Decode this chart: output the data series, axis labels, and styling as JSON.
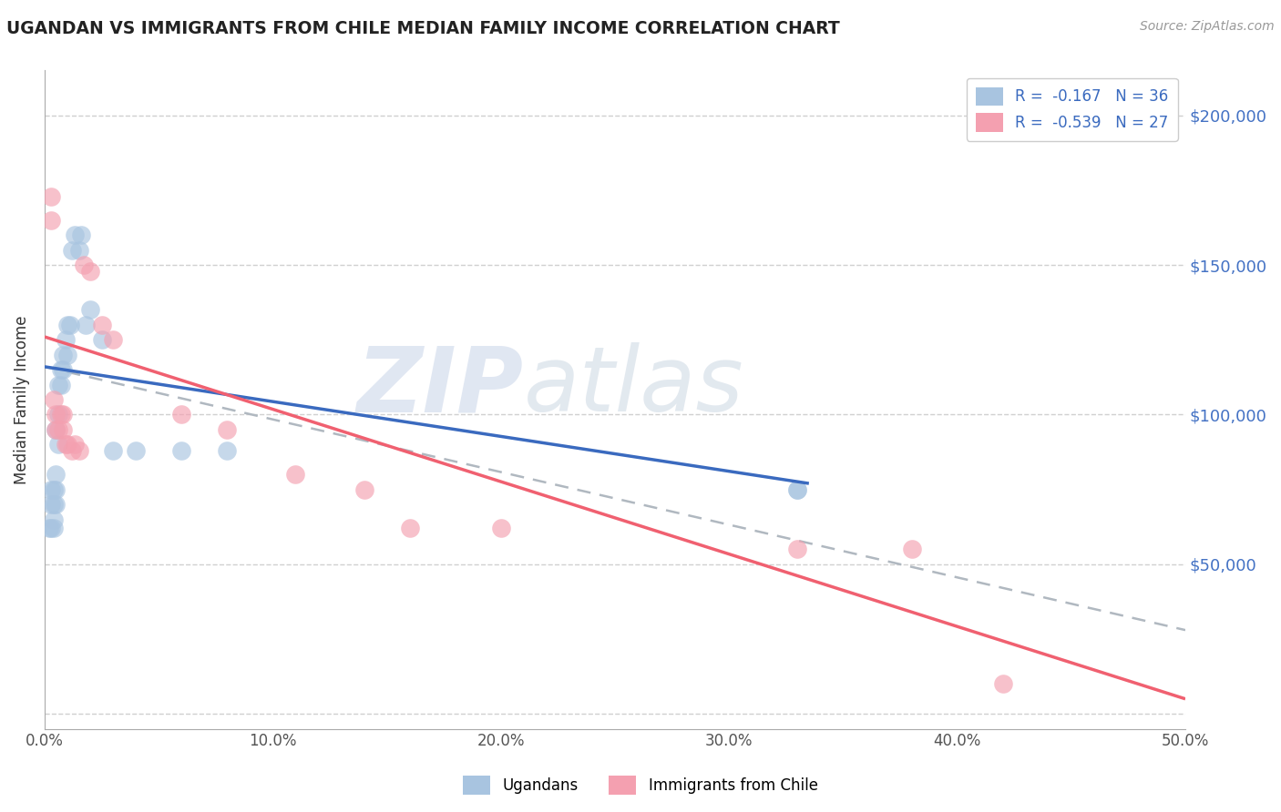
{
  "title": "UGANDAN VS IMMIGRANTS FROM CHILE MEDIAN FAMILY INCOME CORRELATION CHART",
  "source": "Source: ZipAtlas.com",
  "ylabel": "Median Family Income",
  "xlim": [
    0.0,
    0.5
  ],
  "ylim": [
    -5000,
    215000
  ],
  "yticks": [
    0,
    50000,
    100000,
    150000,
    200000
  ],
  "ytick_labels": [
    "",
    "$50,000",
    "$100,000",
    "$150,000",
    "$200,000"
  ],
  "xticks": [
    0.0,
    0.1,
    0.2,
    0.3,
    0.4,
    0.5
  ],
  "xtick_labels": [
    "0.0%",
    "10.0%",
    "20.0%",
    "30.0%",
    "40.0%",
    "50.0%"
  ],
  "ugandan_color": "#a8c4e0",
  "chile_color": "#f4a0b0",
  "trend_blue": "#3a6abf",
  "trend_pink": "#f06070",
  "trend_dashed": "#b0b8c0",
  "legend_R_blue": "R =  -0.167",
  "legend_N_blue": "N = 36",
  "legend_R_pink": "R =  -0.539",
  "legend_N_pink": "N = 27",
  "label_ugandan": "Ugandans",
  "label_chile": "Immigrants from Chile",
  "ytick_color": "#4472c4",
  "ugandan_x": [
    0.002,
    0.003,
    0.003,
    0.003,
    0.004,
    0.004,
    0.004,
    0.004,
    0.005,
    0.005,
    0.005,
    0.005,
    0.006,
    0.006,
    0.006,
    0.007,
    0.007,
    0.008,
    0.008,
    0.009,
    0.01,
    0.01,
    0.011,
    0.012,
    0.013,
    0.015,
    0.016,
    0.018,
    0.02,
    0.025,
    0.03,
    0.04,
    0.06,
    0.08,
    0.33,
    0.33
  ],
  "ugandan_y": [
    62000,
    62000,
    70000,
    75000,
    62000,
    65000,
    70000,
    75000,
    70000,
    75000,
    80000,
    95000,
    90000,
    100000,
    110000,
    110000,
    115000,
    115000,
    120000,
    125000,
    120000,
    130000,
    130000,
    155000,
    160000,
    155000,
    160000,
    130000,
    135000,
    125000,
    88000,
    88000,
    88000,
    88000,
    75000,
    75000
  ],
  "chile_x": [
    0.003,
    0.003,
    0.004,
    0.005,
    0.005,
    0.006,
    0.007,
    0.008,
    0.008,
    0.009,
    0.01,
    0.012,
    0.013,
    0.015,
    0.017,
    0.02,
    0.025,
    0.03,
    0.06,
    0.08,
    0.11,
    0.14,
    0.16,
    0.2,
    0.33,
    0.38,
    0.42
  ],
  "chile_y": [
    173000,
    165000,
    105000,
    100000,
    95000,
    95000,
    100000,
    100000,
    95000,
    90000,
    90000,
    88000,
    90000,
    88000,
    150000,
    148000,
    130000,
    125000,
    100000,
    95000,
    80000,
    75000,
    62000,
    62000,
    55000,
    55000,
    10000
  ],
  "blue_line_x": [
    0.0,
    0.335
  ],
  "blue_line_y": [
    116000,
    77000
  ],
  "pink_line_x": [
    0.0,
    0.5
  ],
  "pink_line_y": [
    126000,
    5000
  ],
  "dashed_line_x": [
    0.0,
    0.5
  ],
  "dashed_line_y": [
    116000,
    28000
  ]
}
